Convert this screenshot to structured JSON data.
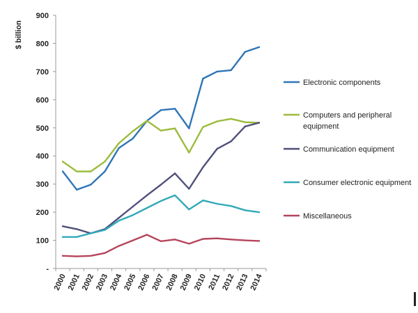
{
  "chart_data": {
    "type": "line",
    "title": "",
    "xlabel": "",
    "ylabel": "$ billion",
    "ylim": [
      0,
      900
    ],
    "y_ticks": [
      "-",
      "100",
      "200",
      "300",
      "400",
      "500",
      "600",
      "700",
      "800",
      "900"
    ],
    "x": [
      "2000",
      "2001",
      "2002",
      "2003",
      "2004",
      "2005",
      "2006",
      "2007",
      "2008",
      "2009",
      "2010",
      "2011",
      "2012",
      "2013",
      "2014"
    ],
    "grid": false,
    "legend_position": "right",
    "series": [
      {
        "name": "Electronic components",
        "color": "#2e75b6",
        "values": [
          345,
          280,
          298,
          345,
          428,
          462,
          525,
          563,
          568,
          498,
          675,
          700,
          705,
          770,
          787
        ]
      },
      {
        "name": "Computers and peripheral equipment",
        "name_lines": [
          "Computers and peripheral",
          "equipment"
        ],
        "color": "#9bbb3b",
        "values": [
          380,
          345,
          345,
          380,
          445,
          488,
          525,
          490,
          498,
          412,
          503,
          523,
          532,
          520,
          518
        ]
      },
      {
        "name": "Communication equipment",
        "color": "#4f4f7a",
        "values": [
          150,
          140,
          125,
          140,
          180,
          220,
          260,
          298,
          338,
          283,
          360,
          425,
          452,
          505,
          518
        ]
      },
      {
        "name": "Consumer electronic equipment",
        "color": "#31a9b8",
        "values": [
          112,
          112,
          125,
          137,
          170,
          190,
          215,
          240,
          260,
          210,
          242,
          230,
          222,
          207,
          200
        ]
      },
      {
        "name": "Miscellaneous",
        "color": "#b5445c",
        "values": [
          45,
          43,
          45,
          55,
          80,
          100,
          120,
          97,
          103,
          88,
          105,
          107,
          103,
          100,
          98
        ]
      }
    ]
  }
}
